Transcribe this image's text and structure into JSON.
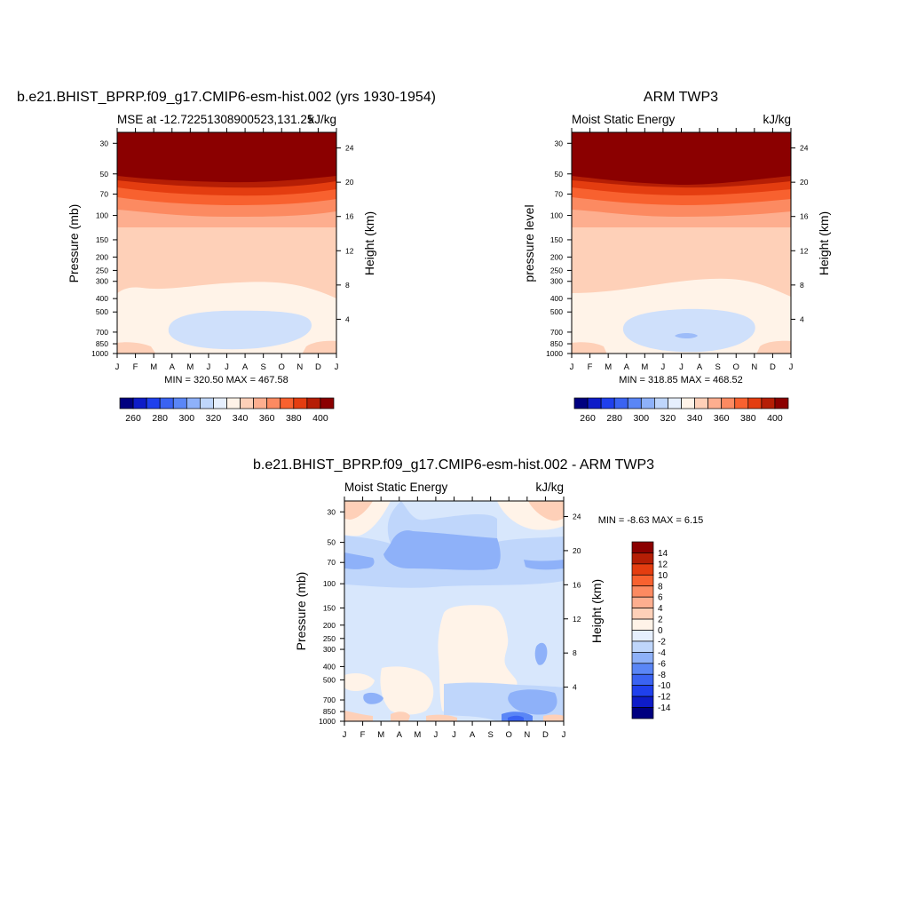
{
  "months": [
    "J",
    "F",
    "M",
    "A",
    "M",
    "J",
    "J",
    "A",
    "S",
    "O",
    "N",
    "D",
    "J"
  ],
  "pressure_ticks": [
    30,
    50,
    70,
    100,
    150,
    200,
    250,
    300,
    400,
    500,
    700,
    850,
    1000
  ],
  "height_ticks": [
    4,
    8,
    12,
    16,
    20,
    24
  ],
  "colors": {
    "mse_bar": [
      "#000080",
      "#0e1cc8",
      "#1f40ed",
      "#3a63f2",
      "#5a86f6",
      "#8eb1f9",
      "#bfd6fb",
      "#e6effd",
      "#fff3e8",
      "#fed0b8",
      "#fdae8f",
      "#fc8a61",
      "#f8612f",
      "#e43d10",
      "#b51e05",
      "#8b0000"
    ],
    "diff_bar": [
      "#000080",
      "#0e1cc8",
      "#1f40ed",
      "#3a63f2",
      "#5a86f6",
      "#8eb1f9",
      "#bfd6fb",
      "#e6effd",
      "#fff3e8",
      "#fed0b8",
      "#fdae8f",
      "#fc8a61",
      "#f8612f",
      "#e43d10",
      "#b51e05",
      "#8b0000"
    ]
  },
  "panel1": {
    "title": "b.e21.BHIST_BPRP.f09_g17.CMIP6-esm-hist.002 (yrs 1930-1954)",
    "left_label": "MSE at -12.72251308900523,131.25",
    "units": "kJ/kg",
    "ylabel": "Pressure (mb)",
    "ylabel2": "Height (km)",
    "minmax": "MIN = 320.50 MAX = 467.58",
    "colorbar_labels": [
      "260",
      "280",
      "300",
      "320",
      "340",
      "360",
      "380",
      "400"
    ]
  },
  "panel2": {
    "title": "ARM TWP3",
    "left_label": "Moist Static Energy",
    "units": "kJ/kg",
    "ylabel": "pressure level",
    "ylabel2": "Height (km)",
    "minmax": "MIN = 318.85 MAX = 468.52",
    "colorbar_labels": [
      "260",
      "280",
      "300",
      "320",
      "340",
      "360",
      "380",
      "400"
    ]
  },
  "panel3": {
    "title": "b.e21.BHIST_BPRP.f09_g17.CMIP6-esm-hist.002 - ARM TWP3",
    "left_label": "Moist Static Energy",
    "units": "kJ/kg",
    "ylabel": "Pressure (mb)",
    "ylabel2": "Height (km)",
    "minmax": "MIN =  -8.63 MAX =   6.15",
    "colorbar_labels": [
      "14",
      "12",
      "10",
      "8",
      "6",
      "4",
      "2",
      "0",
      "-2",
      "-4",
      "-6",
      "-8",
      "-10",
      "-12",
      "-14"
    ]
  },
  "chart_data": [
    {
      "type": "heatmap",
      "title": "b.e21.BHIST_BPRP.f09_g17.CMIP6-esm-hist.002 (yrs 1930-1954)",
      "subtitle": "MSE at -12.72251308900523,131.25",
      "units": "kJ/kg",
      "x": [
        "J",
        "F",
        "M",
        "A",
        "M",
        "J",
        "J",
        "A",
        "S",
        "O",
        "N",
        "D",
        "J"
      ],
      "ylabel": "Pressure (mb)",
      "y2label": "Height (km)",
      "levels": [
        260,
        270,
        280,
        290,
        300,
        310,
        320,
        330,
        340,
        350,
        360,
        370,
        380,
        390,
        400
      ],
      "min": 320.5,
      "max": 467.58,
      "description": "MSE decreases from ~400+ above 50 mb to ~320-330 near 500-850 mb"
    },
    {
      "type": "heatmap",
      "title": "ARM TWP3",
      "subtitle": "Moist Static Energy",
      "units": "kJ/kg",
      "x": [
        "J",
        "F",
        "M",
        "A",
        "M",
        "J",
        "J",
        "A",
        "S",
        "O",
        "N",
        "D",
        "J"
      ],
      "ylabel": "pressure level",
      "y2label": "Height (km)",
      "levels": [
        260,
        270,
        280,
        290,
        300,
        310,
        320,
        330,
        340,
        350,
        360,
        370,
        380,
        390,
        400
      ],
      "min": 318.85,
      "max": 468.52
    },
    {
      "type": "heatmap",
      "title": "b.e21.BHIST_BPRP.f09_g17.CMIP6-esm-hist.002 - ARM TWP3",
      "subtitle": "Moist Static Energy",
      "units": "kJ/kg",
      "x": [
        "J",
        "F",
        "M",
        "A",
        "M",
        "J",
        "J",
        "A",
        "S",
        "O",
        "N",
        "D",
        "J"
      ],
      "ylabel": "Pressure (mb)",
      "y2label": "Height (km)",
      "levels": [
        -14,
        -12,
        -10,
        -8,
        -6,
        -4,
        -2,
        0,
        2,
        4,
        6,
        8,
        10,
        12,
        14
      ],
      "min": -8.63,
      "max": 6.15
    }
  ]
}
